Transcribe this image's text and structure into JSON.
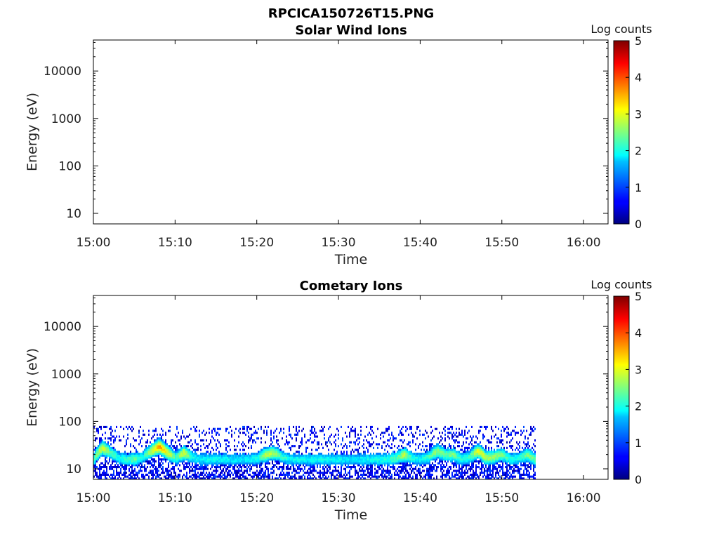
{
  "figure_title": "RPCICA150726T15.PNG",
  "chart_data": [
    {
      "type": "heatmap",
      "title": "Solar Wind Ions",
      "xlabel": "Time",
      "ylabel": "Energy (eV)",
      "x_ticks": [
        "15:00",
        "15:10",
        "15:20",
        "15:30",
        "15:40",
        "15:50",
        "16:00"
      ],
      "xlim_minutes": [
        0,
        63
      ],
      "y_scale": "log",
      "y_ticks": [
        10,
        100,
        1000,
        10000
      ],
      "y_tick_labels": [
        "10",
        "100",
        "1000",
        "10000"
      ],
      "ylim": [
        6,
        45000
      ],
      "colorbar": {
        "label": "Log counts",
        "range": [
          0,
          5
        ],
        "ticks": [
          "0",
          "1",
          "2",
          "3",
          "4",
          "5"
        ],
        "colormap": "jet"
      },
      "data_extent_minutes": null,
      "band": []
    },
    {
      "type": "heatmap",
      "title": "Cometary Ions",
      "xlabel": "Time",
      "ylabel": "Energy (eV)",
      "x_ticks": [
        "15:00",
        "15:10",
        "15:20",
        "15:30",
        "15:40",
        "15:50",
        "16:00"
      ],
      "xlim_minutes": [
        0,
        63
      ],
      "y_scale": "log",
      "y_ticks": [
        10,
        100,
        1000,
        10000
      ],
      "y_tick_labels": [
        "10",
        "100",
        "1000",
        "10000"
      ],
      "ylim": [
        6,
        45000
      ],
      "colorbar": {
        "label": "Log counts",
        "range": [
          0,
          5
        ],
        "ticks": [
          "0",
          "1",
          "2",
          "3",
          "4",
          "5"
        ],
        "colormap": "jet"
      },
      "data_extent_minutes": [
        0,
        54
      ],
      "noise_floor_energy_eV": [
        6,
        80
      ],
      "band": [
        {
          "t": 0,
          "e": 16,
          "v": 2.2
        },
        {
          "t": 1,
          "e": 28,
          "v": 3.0
        },
        {
          "t": 2,
          "e": 22,
          "v": 2.3
        },
        {
          "t": 3,
          "e": 17,
          "v": 2.0
        },
        {
          "t": 4,
          "e": 16,
          "v": 2.1
        },
        {
          "t": 5,
          "e": 16,
          "v": 2.4
        },
        {
          "t": 6,
          "e": 18,
          "v": 1.9
        },
        {
          "t": 7,
          "e": 24,
          "v": 2.8
        },
        {
          "t": 8,
          "e": 30,
          "v": 3.6
        },
        {
          "t": 9,
          "e": 22,
          "v": 3.0
        },
        {
          "t": 10,
          "e": 17,
          "v": 2.2
        },
        {
          "t": 11,
          "e": 22,
          "v": 3.0
        },
        {
          "t": 12,
          "e": 18,
          "v": 2.0
        },
        {
          "t": 13,
          "e": 16,
          "v": 1.8
        },
        {
          "t": 14,
          "e": 16,
          "v": 1.9
        },
        {
          "t": 15,
          "e": 16,
          "v": 1.9
        },
        {
          "t": 16,
          "e": 16,
          "v": 1.9
        },
        {
          "t": 17,
          "e": 16,
          "v": 1.8
        },
        {
          "t": 18,
          "e": 16,
          "v": 1.8
        },
        {
          "t": 19,
          "e": 16,
          "v": 1.9
        },
        {
          "t": 20,
          "e": 17,
          "v": 2.0
        },
        {
          "t": 21,
          "e": 20,
          "v": 2.8
        },
        {
          "t": 22,
          "e": 22,
          "v": 2.7
        },
        {
          "t": 23,
          "e": 18,
          "v": 2.1
        },
        {
          "t": 24,
          "e": 16,
          "v": 1.9
        },
        {
          "t": 25,
          "e": 16,
          "v": 1.9
        },
        {
          "t": 26,
          "e": 16,
          "v": 1.9
        },
        {
          "t": 27,
          "e": 16,
          "v": 1.9
        },
        {
          "t": 28,
          "e": 16,
          "v": 1.9
        },
        {
          "t": 29,
          "e": 16,
          "v": 1.9
        },
        {
          "t": 30,
          "e": 16,
          "v": 1.9
        },
        {
          "t": 31,
          "e": 16,
          "v": 1.8
        },
        {
          "t": 32,
          "e": 16,
          "v": 1.7
        },
        {
          "t": 33,
          "e": 16,
          "v": 1.9
        },
        {
          "t": 34,
          "e": 16,
          "v": 1.9
        },
        {
          "t": 35,
          "e": 16,
          "v": 2.0
        },
        {
          "t": 36,
          "e": 16,
          "v": 2.0
        },
        {
          "t": 37,
          "e": 17,
          "v": 2.3
        },
        {
          "t": 38,
          "e": 20,
          "v": 2.8
        },
        {
          "t": 39,
          "e": 17,
          "v": 2.0
        },
        {
          "t": 40,
          "e": 16,
          "v": 1.9
        },
        {
          "t": 41,
          "e": 18,
          "v": 2.2
        },
        {
          "t": 42,
          "e": 24,
          "v": 2.6
        },
        {
          "t": 43,
          "e": 20,
          "v": 2.3
        },
        {
          "t": 44,
          "e": 20,
          "v": 2.5
        },
        {
          "t": 45,
          "e": 16,
          "v": 2.0
        },
        {
          "t": 46,
          "e": 18,
          "v": 2.2
        },
        {
          "t": 47,
          "e": 24,
          "v": 3.0
        },
        {
          "t": 48,
          "e": 17,
          "v": 2.8
        },
        {
          "t": 49,
          "e": 18,
          "v": 2.6
        },
        {
          "t": 50,
          "e": 20,
          "v": 2.4
        },
        {
          "t": 51,
          "e": 16,
          "v": 2.0
        },
        {
          "t": 52,
          "e": 17,
          "v": 2.0
        },
        {
          "t": 53,
          "e": 20,
          "v": 2.5
        },
        {
          "t": 54,
          "e": 16,
          "v": 2.4
        }
      ]
    }
  ]
}
